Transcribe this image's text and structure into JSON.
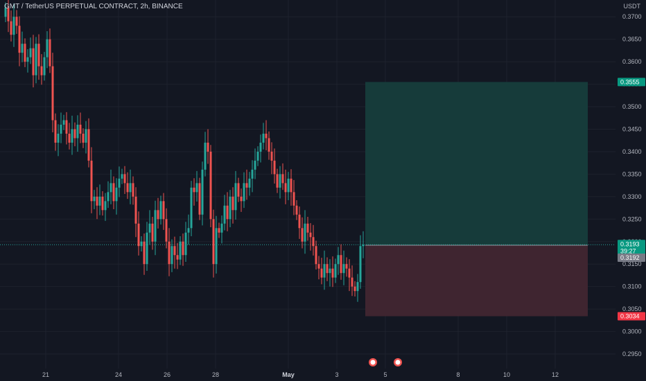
{
  "header": {
    "symbol_title": "GMT / TetherUS PERPETUAL CONTRACT, 2h, BINANCE",
    "currency": "USDT"
  },
  "price_axis": {
    "ticks": [
      "0.3700",
      "0.3650",
      "0.3600",
      "0.3550",
      "0.3500",
      "0.3450",
      "0.3400",
      "0.3350",
      "0.3300",
      "0.3250",
      "0.3200",
      "0.3150",
      "0.3100",
      "0.3050",
      "0.3000",
      "0.2950"
    ]
  },
  "time_axis": {
    "ticks": [
      "21",
      "24",
      "26",
      "28",
      "May",
      "3",
      "5",
      "8",
      "10",
      "12"
    ]
  },
  "labels": {
    "target": "0.3555",
    "current": "0.3193",
    "countdown": "39:27",
    "entry": "0.3192",
    "stop": "0.3034"
  },
  "colors": {
    "up": "#26a69a",
    "down": "#ef5350",
    "profit_zone": "#163b3a",
    "loss_zone": "#3f2530",
    "background": "#131722"
  },
  "icons": [
    "earnings-flag-icon",
    "earnings-flag-icon"
  ],
  "chart_data": {
    "type": "candlestick",
    "title": "GMT / TetherUS PERPETUAL CONTRACT, 2h, BINANCE",
    "ylim": [
      0.293,
      0.3725
    ],
    "y_unit": "USDT",
    "x_ticks": [
      "21",
      "24",
      "26",
      "28",
      "May",
      "3",
      "5",
      "8",
      "10",
      "12"
    ],
    "position_tool": {
      "target": 0.3555,
      "entry": 0.3192,
      "stop": 0.3034
    },
    "last_price": 0.3193,
    "closes": [
      0.372,
      0.369,
      0.366,
      0.37,
      0.368,
      0.362,
      0.364,
      0.36,
      0.361,
      0.363,
      0.357,
      0.364,
      0.359,
      0.357,
      0.361,
      0.365,
      0.359,
      0.347,
      0.342,
      0.344,
      0.346,
      0.347,
      0.344,
      0.342,
      0.345,
      0.343,
      0.346,
      0.344,
      0.342,
      0.345,
      0.338,
      0.329,
      0.33,
      0.328,
      0.33,
      0.327,
      0.329,
      0.331,
      0.333,
      0.329,
      0.332,
      0.334,
      0.335,
      0.333,
      0.331,
      0.333,
      0.33,
      0.324,
      0.319,
      0.32,
      0.315,
      0.322,
      0.324,
      0.32,
      0.327,
      0.325,
      0.329,
      0.325,
      0.32,
      0.315,
      0.319,
      0.317,
      0.316,
      0.32,
      0.317,
      0.322,
      0.323,
      0.332,
      0.331,
      0.333,
      0.326,
      0.336,
      0.342,
      0.34,
      0.325,
      0.315,
      0.323,
      0.322,
      0.324,
      0.328,
      0.325,
      0.33,
      0.327,
      0.333,
      0.33,
      0.329,
      0.333,
      0.332,
      0.334,
      0.336,
      0.338,
      0.34,
      0.342,
      0.344,
      0.343,
      0.34,
      0.338,
      0.335,
      0.332,
      0.335,
      0.333,
      0.331,
      0.334,
      0.331,
      0.328,
      0.326,
      0.323,
      0.32,
      0.324,
      0.322,
      0.321,
      0.319,
      0.315,
      0.314,
      0.312,
      0.315,
      0.313,
      0.314,
      0.312,
      0.315,
      0.317,
      0.313,
      0.315,
      0.314,
      0.312,
      0.31,
      0.309,
      0.311,
      0.319,
      0.3193
    ]
  }
}
